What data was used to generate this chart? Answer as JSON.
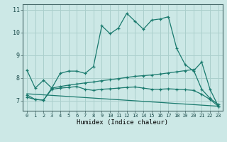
{
  "xlabel": "Humidex (Indice chaleur)",
  "bg_color": "#cce8e6",
  "grid_color": "#aacfcc",
  "line_color": "#1a7a6e",
  "xlim": [
    -0.5,
    23.5
  ],
  "ylim": [
    6.55,
    11.25
  ],
  "yticks": [
    7,
    8,
    9,
    10,
    11
  ],
  "xticks": [
    0,
    1,
    2,
    3,
    4,
    5,
    6,
    7,
    8,
    9,
    10,
    11,
    12,
    13,
    14,
    15,
    16,
    17,
    18,
    19,
    20,
    21,
    22,
    23
  ],
  "line1_x": [
    0,
    1,
    2,
    3,
    4,
    5,
    6,
    7,
    8,
    9,
    10,
    11,
    12,
    13,
    14,
    15,
    16,
    17,
    18,
    19,
    20,
    21,
    22,
    23
  ],
  "line1_y": [
    8.35,
    7.55,
    7.9,
    7.55,
    8.2,
    8.3,
    8.3,
    8.2,
    8.5,
    10.3,
    9.95,
    10.2,
    10.85,
    10.5,
    10.15,
    10.55,
    10.6,
    10.7,
    9.3,
    8.6,
    8.3,
    8.7,
    7.5,
    6.75
  ],
  "line2_x": [
    0,
    1,
    2,
    3,
    4,
    5,
    6,
    7,
    8,
    9,
    10,
    11,
    12,
    13,
    14,
    15,
    16,
    17,
    18,
    19,
    20,
    21,
    22,
    23
  ],
  "line2_y": [
    7.15,
    7.05,
    7.02,
    7.55,
    7.62,
    7.68,
    7.73,
    7.78,
    7.82,
    7.88,
    7.92,
    7.97,
    8.02,
    8.07,
    8.1,
    8.13,
    8.17,
    8.22,
    8.27,
    8.32,
    8.37,
    7.5,
    7.1,
    6.82
  ],
  "line3_x": [
    0,
    1,
    2,
    3,
    4,
    5,
    6,
    7,
    8,
    9,
    10,
    11,
    12,
    13,
    14,
    15,
    16,
    17,
    18,
    19,
    20,
    21,
    22,
    23
  ],
  "line3_y": [
    7.25,
    7.05,
    7.02,
    7.5,
    7.55,
    7.58,
    7.62,
    7.5,
    7.45,
    7.5,
    7.52,
    7.55,
    7.58,
    7.6,
    7.55,
    7.5,
    7.5,
    7.52,
    7.5,
    7.48,
    7.45,
    7.28,
    7.05,
    6.75
  ],
  "line4_x": [
    0,
    23
  ],
  "line4_y": [
    7.3,
    6.75
  ]
}
